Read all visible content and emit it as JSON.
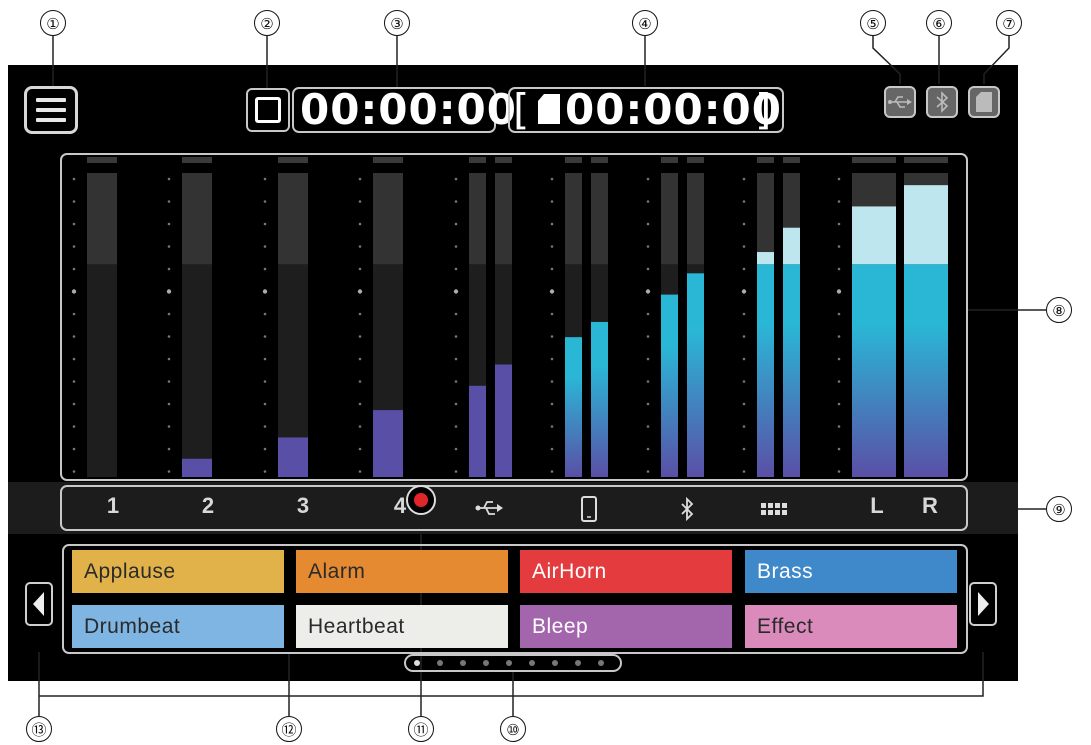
{
  "callouts": [
    "①",
    "②",
    "③",
    "④",
    "⑤",
    "⑥",
    "⑦",
    "⑧",
    "⑨",
    "⑩",
    "⑪",
    "⑫",
    "⑬"
  ],
  "header": {
    "elapsed_time": "00:00:00",
    "remaining_time": "00:00:00",
    "bracket_left": "[",
    "bracket_right": "]"
  },
  "status_icons": [
    "usb-icon",
    "bluetooth-icon",
    "sd-card-icon"
  ],
  "meters": [
    {
      "channel": "1",
      "levels": [
        0.0
      ]
    },
    {
      "channel": "2",
      "levels": [
        0.06
      ]
    },
    {
      "channel": "3",
      "levels": [
        0.13
      ]
    },
    {
      "channel": "4",
      "levels": [
        0.22
      ]
    },
    {
      "channel": "usb",
      "levels": [
        0.3,
        0.37
      ]
    },
    {
      "channel": "phone",
      "levels": [
        0.46,
        0.51
      ]
    },
    {
      "channel": "bluetooth",
      "levels": [
        0.6,
        0.67
      ]
    },
    {
      "channel": "sound-pad",
      "levels": [
        0.74,
        0.82
      ]
    },
    {
      "channel": "master",
      "levels": [
        0.89,
        0.96
      ]
    }
  ],
  "channel_labels": [
    "1",
    "2",
    "3",
    "4",
    "",
    "",
    "",
    "",
    "L",
    "R"
  ],
  "channel_icons": [
    "usb-icon",
    "phone-icon",
    "bluetooth-icon",
    "grid-icon"
  ],
  "record_indicator_color": "#e0262a",
  "pads": [
    {
      "label": "Applause",
      "bg": "#e2b24a",
      "fg": "#2a2a2a"
    },
    {
      "label": "Alarm",
      "bg": "#e58a31",
      "fg": "#2a2a2a"
    },
    {
      "label": "AirHorn",
      "bg": "#e33b3e",
      "fg": "#ffffff"
    },
    {
      "label": "Brass",
      "bg": "#3f88c9",
      "fg": "#ffffff"
    },
    {
      "label": "Drumbeat",
      "bg": "#7fb5e2",
      "fg": "#2a2a2a"
    },
    {
      "label": "Heartbeat",
      "bg": "#ededea",
      "fg": "#2a2a2a"
    },
    {
      "label": "Bleep",
      "bg": "#a365ac",
      "fg": "#ffffff"
    },
    {
      "label": "Effect",
      "bg": "#db8bbb",
      "fg": "#2a2a2a"
    }
  ],
  "page_dots": 9,
  "colors": {
    "meter_low": "#5a4fa6",
    "meter_mid": "#2ab7d6",
    "meter_high": "#bde6ee",
    "meter_track": "#2a2a2a",
    "highlight": "#c8c8c8"
  }
}
